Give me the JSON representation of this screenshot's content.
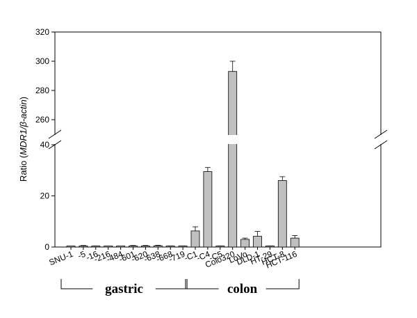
{
  "chart_data": {
    "type": "bar",
    "ylabel": {
      "prefix": "Ratio (",
      "italic": "MDR1/β-actin",
      "suffix": ")"
    },
    "categories": [
      "SNU-1",
      "-5",
      "-16",
      "-216",
      "-484",
      "-601",
      "-620",
      "-638",
      "-668",
      "-719",
      "-C1",
      "-C4",
      "-C5",
      "Colo320",
      "LoVo",
      "DLD-1",
      "HT-29",
      "HCT-8",
      "HCT-116"
    ],
    "values": [
      0.3,
      0.4,
      0.3,
      0.2,
      0.3,
      0.4,
      0.4,
      0.5,
      0.3,
      0.3,
      6.3,
      29.5,
      0.3,
      293,
      3,
      4.2,
      0.3,
      26,
      3.5
    ],
    "errors": [
      0,
      0.2,
      0.1,
      0,
      0,
      0.2,
      0.2,
      0.2,
      0.1,
      0.1,
      1.6,
      1.6,
      0.1,
      7,
      0.5,
      1.9,
      0.1,
      1.5,
      1
    ],
    "axis_break": {
      "lower": [
        0,
        40
      ],
      "upper": [
        250,
        320
      ]
    },
    "yticks_lower": [
      0,
      20,
      40
    ],
    "yticks_upper": [
      260,
      280,
      300,
      320
    ],
    "bar_color": "#c0c0c0",
    "groups": [
      {
        "label": "gastric",
        "from": 0,
        "to": 9
      },
      {
        "label": "colon",
        "from": 10,
        "to": 18
      }
    ]
  }
}
